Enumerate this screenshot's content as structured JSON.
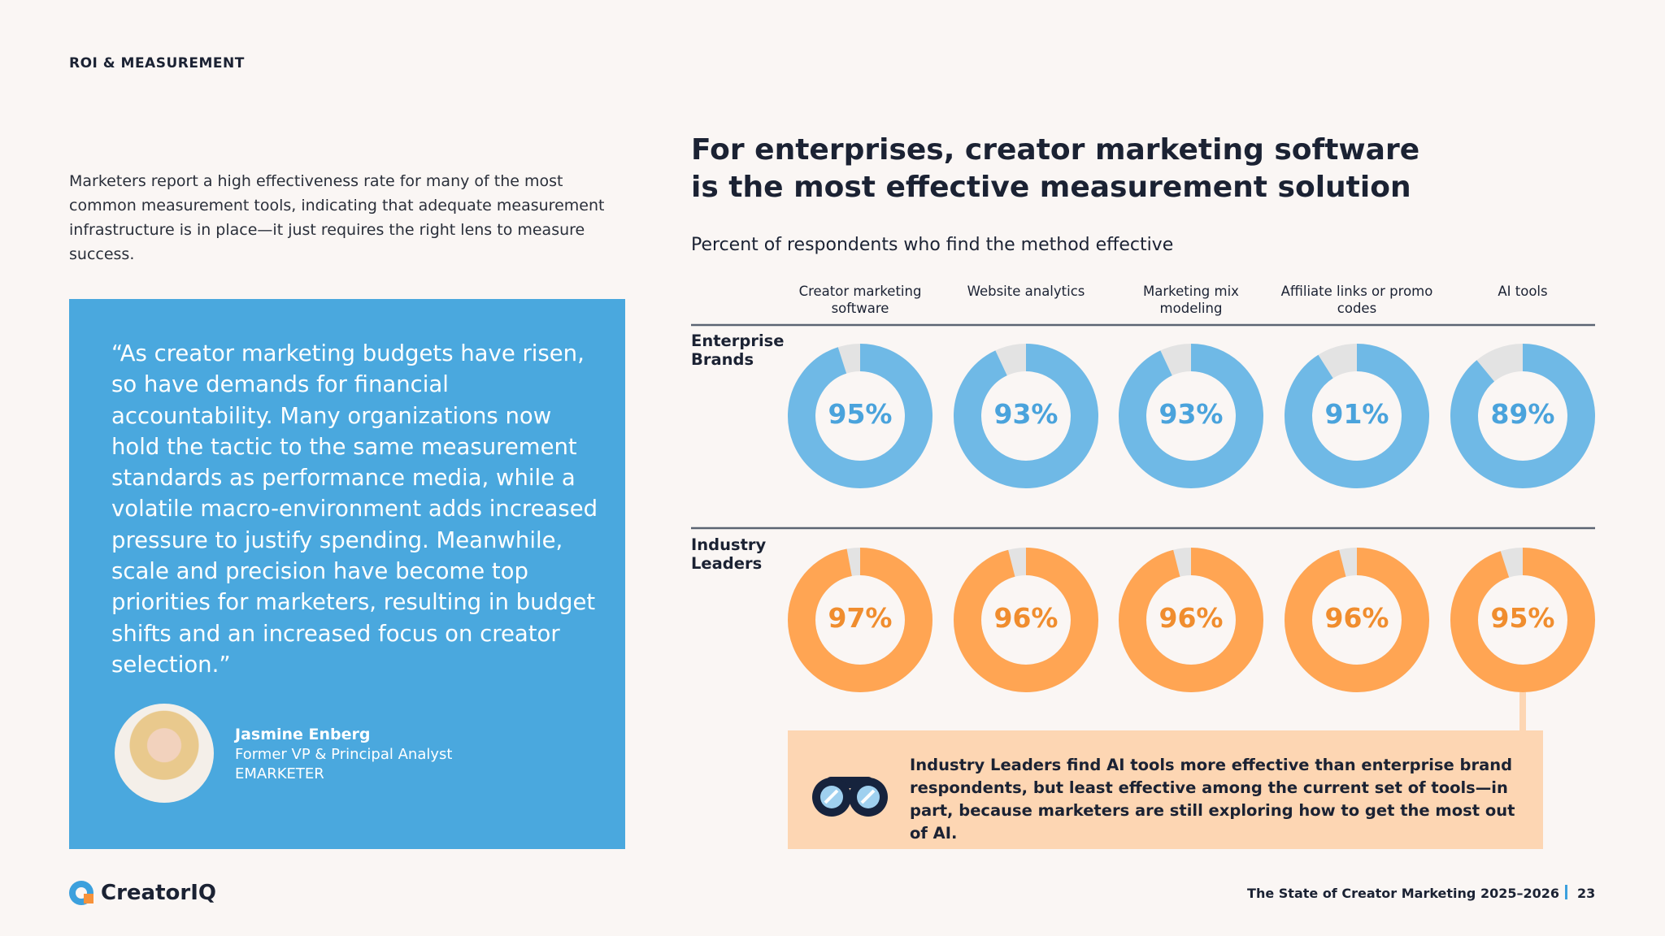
{
  "header": {
    "section": "ROI & MEASUREMENT"
  },
  "intro": "Marketers report a high effectiveness rate for many of the most common measurement tools, indicating that adequate measurement infrastructure is in place—it just requires the right lens to measure success.",
  "quote": {
    "text": "“As creator marketing budgets have risen, so have demands for financial accountability. Many organizations now hold the tactic to the same measurement standards as performance media, while a volatile macro-environment adds increased pressure to justify spending. Meanwhile, scale and precision have become top priorities for marketers, resulting in budget shifts and an increased focus on creator selection.”",
    "name": "Jasmine Enberg",
    "role": "Former VP & Principal Analyst",
    "org": "EMARKETER"
  },
  "chart_data": {
    "type": "donut",
    "title": "For enterprises, creator marketing software is the most effective measurement solution",
    "subtitle": "Percent of respondents who find the method effective",
    "categories": [
      "Creator marketing software",
      "Website analytics",
      "Marketing mix modeling",
      "Affiliate links or promo codes",
      "AI tools"
    ],
    "remainder_color": "#e3e3e3",
    "series": [
      {
        "name": "Enterprise Brands",
        "color": "#6fb9e6",
        "label_color": "#4aa3dc",
        "values": [
          95,
          93,
          93,
          91,
          89
        ],
        "value_labels": [
          "95%",
          "93%",
          "93%",
          "91%",
          "89%"
        ]
      },
      {
        "name": "Industry Leaders",
        "color": "#ffa553",
        "label_color": "#f08d2e",
        "values": [
          97,
          96,
          96,
          96,
          95
        ],
        "value_labels": [
          "97%",
          "96%",
          "96%",
          "96%",
          "95%"
        ]
      }
    ]
  },
  "callout": {
    "text": "Industry Leaders find AI tools more effective than enterprise brand respondents, but least effective among the current set of tools—in part, because ",
    "emphasis": "marketers are still exploring how to get the most out of AI."
  },
  "footer": {
    "logo": "CreatorIQ",
    "publication": "The State of Creator Marketing 2025–2026",
    "page": "23"
  }
}
